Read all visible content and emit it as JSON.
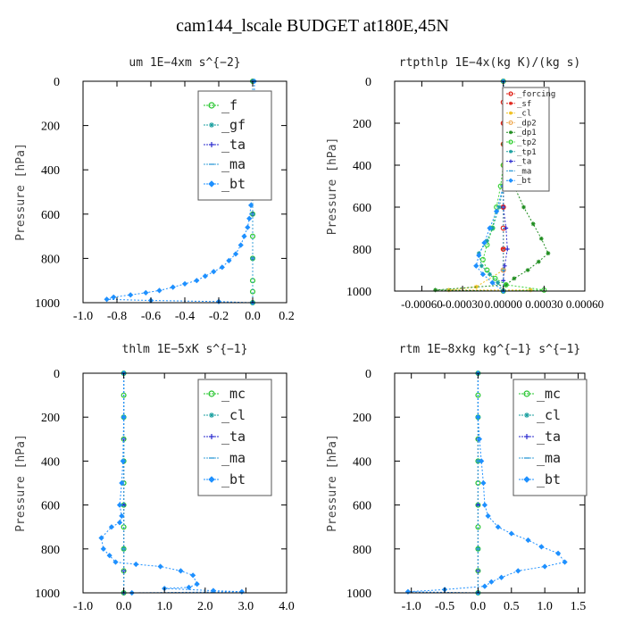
{
  "title": "cam144_lscale  BUDGET at180E,45N",
  "chart_data": [
    {
      "type": "line",
      "title": "um  1E−4xm s^{−2}",
      "ylabel": "Pressure [hPa]",
      "xlim": [
        -1.0,
        0.2
      ],
      "ylim": [
        1000,
        0
      ],
      "xticks": [
        -1.0,
        -0.8,
        -0.6,
        -0.4,
        -0.2,
        0.0,
        0.2
      ],
      "xtick_labels": [
        "-1.0",
        "-0.8",
        "-0.6",
        "-0.4",
        "-0.2",
        "0.0",
        "0.2"
      ],
      "yticks": [
        0,
        200,
        400,
        600,
        800,
        1000
      ],
      "legend": "top-right",
      "series": [
        {
          "name": "_f",
          "color": "#22c42a",
          "marker": "circle",
          "x": [
            0.0,
            0.0,
            0.0,
            0.0,
            0.0,
            0.0,
            0.0,
            0.0,
            0.0,
            0.0,
            0.0,
            0.0
          ],
          "y": [
            0,
            100,
            200,
            300,
            400,
            500,
            600,
            700,
            800,
            900,
            950,
            1000
          ]
        },
        {
          "name": "_gf",
          "color": "#1a9f9f",
          "marker": "star",
          "x": [
            0.0,
            0.0,
            0.0,
            0.0,
            0.0,
            0.0
          ],
          "y": [
            0,
            200,
            400,
            600,
            800,
            1000
          ]
        },
        {
          "name": "_ta",
          "color": "#2a2acf",
          "marker": "plus",
          "x": [
            0.0,
            0.0,
            0.0,
            0.0,
            0.0,
            0.0
          ],
          "y": [
            0,
            200,
            400,
            600,
            800,
            1000
          ]
        },
        {
          "name": "_ma",
          "color": "#3aa0d8",
          "marker": "dash",
          "x": [
            0.0,
            0.0,
            0.0,
            0.0,
            0.0,
            0.0
          ],
          "y": [
            0,
            200,
            400,
            600,
            800,
            1000
          ]
        },
        {
          "name": "_bt",
          "color": "#1e90ff",
          "marker": "diamond",
          "x": [
            0.01,
            0.01,
            0.02,
            0.02,
            0.01,
            0.0,
            -0.01,
            -0.02,
            -0.03,
            -0.05,
            -0.07,
            -0.1,
            -0.14,
            -0.18,
            -0.23,
            -0.28,
            -0.33,
            -0.4,
            -0.47,
            -0.55,
            -0.63,
            -0.72,
            -0.82,
            -0.86,
            -0.6,
            -0.2,
            0.0
          ],
          "y": [
            0,
            100,
            200,
            300,
            400,
            500,
            560,
            620,
            660,
            700,
            740,
            780,
            810,
            840,
            860,
            880,
            900,
            915,
            930,
            945,
            955,
            965,
            975,
            985,
            990,
            995,
            1000
          ]
        }
      ]
    },
    {
      "type": "line",
      "title": "rtpthlp  1E−4x(kg K)/(kg s)",
      "ylabel": "Pressure [hPa]",
      "xlim": [
        -0.0008,
        0.0006
      ],
      "ylim": [
        1000,
        0
      ],
      "xticks": [
        -0.0006,
        -0.0003,
        0.0,
        0.0003,
        0.0006
      ],
      "xtick_labels": [
        "-0.00060",
        "-0.00030",
        "0.00000",
        "0.00030",
        "0.00060"
      ],
      "yticks": [
        0,
        200,
        400,
        600,
        800,
        1000
      ],
      "legend": "top-right",
      "series": [
        {
          "name": "_forcing",
          "color": "#e0241a",
          "marker": "circle",
          "x": [
            0,
            0,
            0,
            0,
            0,
            0,
            0,
            0,
            0,
            0,
            0
          ],
          "y": [
            0,
            100,
            200,
            300,
            400,
            500,
            600,
            700,
            800,
            900,
            1000
          ]
        },
        {
          "name": "_sf",
          "color": "#e0241a",
          "marker": "star",
          "x": [
            0,
            0,
            0,
            0,
            0,
            0
          ],
          "y": [
            0,
            200,
            400,
            600,
            800,
            1000
          ]
        },
        {
          "name": "_cl",
          "color": "#f0c020",
          "marker": "star",
          "x": [
            0,
            0,
            0,
            -0.0002,
            -0.0004,
            0.0002,
            0
          ],
          "y": [
            0,
            400,
            900,
            980,
            995,
            995,
            1000
          ]
        },
        {
          "name": "_dp2",
          "color": "#f0b060",
          "marker": "circle",
          "x": [
            0,
            0,
            0,
            0
          ],
          "y": [
            0,
            500,
            900,
            1000
          ]
        },
        {
          "name": "_dp1",
          "color": "#1e8c1e",
          "marker": "star",
          "x": [
            0.0,
            0.0,
            3e-05,
            8e-05,
            0.00015,
            0.00022,
            0.00028,
            0.00033,
            0.00026,
            0.00018,
            8e-05,
            2e-05,
            -0.0005,
            0.0
          ],
          "y": [
            0,
            300,
            400,
            500,
            600,
            680,
            750,
            820,
            860,
            900,
            940,
            970,
            995,
            1000
          ]
        },
        {
          "name": "_tp2",
          "color": "#3ad23a",
          "marker": "circle",
          "x": [
            0.0,
            0.0,
            -2e-05,
            -5e-05,
            -8e-05,
            -0.00012,
            -0.00015,
            -0.00012,
            -6e-05,
            2e-05,
            0.0003,
            0.0
          ],
          "y": [
            0,
            400,
            500,
            600,
            700,
            780,
            850,
            900,
            940,
            970,
            995,
            1000
          ]
        },
        {
          "name": "_tp1",
          "color": "#1a9f9f",
          "marker": "star",
          "x": [
            0.0,
            0.0,
            -3e-05,
            -8e-05,
            -0.00012,
            -0.00018,
            -0.00016,
            -0.0001,
            -4e-05,
            0.0
          ],
          "y": [
            0,
            500,
            600,
            700,
            760,
            820,
            880,
            920,
            960,
            1000
          ]
        },
        {
          "name": "_ta",
          "color": "#2a2acf",
          "marker": "plus",
          "x": [
            0,
            0,
            2e-05,
            3e-05,
            1e-05,
            0,
            0
          ],
          "y": [
            0,
            600,
            700,
            800,
            880,
            950,
            1000
          ]
        },
        {
          "name": "_ma",
          "color": "#3aa0d8",
          "marker": "dash",
          "x": [
            0,
            0,
            0,
            0
          ],
          "y": [
            0,
            500,
            900,
            1000
          ]
        },
        {
          "name": "_bt",
          "color": "#1e90ff",
          "marker": "diamond",
          "x": [
            0.0,
            0.0,
            -5e-05,
            -0.0001,
            -0.00014,
            -0.00018,
            -0.0002,
            -0.00015,
            -8e-05,
            0.0
          ],
          "y": [
            0,
            500,
            620,
            700,
            770,
            830,
            880,
            920,
            960,
            1000
          ]
        }
      ]
    },
    {
      "type": "line",
      "title": "thlm  1E−5xK s^{−1}",
      "ylabel": "Pressure [hPa]",
      "xlim": [
        -1.0,
        4.0
      ],
      "ylim": [
        1000,
        0
      ],
      "xticks": [
        -1.0,
        0.0,
        1.0,
        2.0,
        3.0,
        4.0
      ],
      "xtick_labels": [
        "-1.0",
        "0.0",
        "1.0",
        "2.0",
        "3.0",
        "4.0"
      ],
      "yticks": [
        0,
        200,
        400,
        600,
        800,
        1000
      ],
      "legend": "top-right",
      "series": [
        {
          "name": "_mc",
          "color": "#22c42a",
          "marker": "circle",
          "x": [
            0,
            0,
            0,
            0,
            0,
            0,
            0,
            0,
            0,
            0,
            0
          ],
          "y": [
            0,
            100,
            200,
            300,
            400,
            500,
            600,
            700,
            800,
            900,
            1000
          ]
        },
        {
          "name": "_cl",
          "color": "#1a9f9f",
          "marker": "star",
          "x": [
            0,
            0,
            0,
            0,
            0,
            0
          ],
          "y": [
            0,
            200,
            400,
            600,
            800,
            1000
          ]
        },
        {
          "name": "_ta",
          "color": "#2a2acf",
          "marker": "plus",
          "x": [
            0,
            0,
            0,
            0,
            0
          ],
          "y": [
            0,
            300,
            600,
            900,
            1000
          ]
        },
        {
          "name": "_ma",
          "color": "#3aa0d8",
          "marker": "dash",
          "x": [
            0,
            0,
            0,
            0
          ],
          "y": [
            0,
            400,
            800,
            1000
          ]
        },
        {
          "name": "_bt",
          "color": "#1e90ff",
          "marker": "diamond",
          "x": [
            0.0,
            0.0,
            -0.02,
            -0.05,
            -0.1,
            -0.05,
            -0.1,
            -0.3,
            -0.55,
            -0.5,
            -0.35,
            -0.2,
            0.3,
            0.9,
            1.4,
            1.7,
            1.8,
            1.6,
            1.0,
            2.2,
            2.9,
            0.2
          ],
          "y": [
            0,
            200,
            400,
            500,
            600,
            650,
            680,
            700,
            750,
            800,
            830,
            860,
            870,
            880,
            900,
            920,
            960,
            975,
            980,
            990,
            995,
            1000
          ]
        }
      ]
    },
    {
      "type": "line",
      "title": "rtm  1E−8xkg kg^{−1} s^{−1}",
      "ylabel": "Pressure [hPa]",
      "xlim": [
        -1.25,
        1.6
      ],
      "ylim": [
        1000,
        0
      ],
      "xticks": [
        -1.0,
        -0.5,
        0.0,
        0.5,
        1.0,
        1.5
      ],
      "xtick_labels": [
        "-1.0",
        "-0.5",
        "0.0",
        "0.5",
        "1.0",
        "1.5"
      ],
      "yticks": [
        0,
        200,
        400,
        600,
        800,
        1000
      ],
      "legend": "top-right",
      "series": [
        {
          "name": "_mc",
          "color": "#22c42a",
          "marker": "circle",
          "x": [
            0,
            0,
            0,
            0,
            0,
            0,
            0,
            0,
            0,
            0,
            0
          ],
          "y": [
            0,
            100,
            200,
            300,
            400,
            500,
            600,
            700,
            800,
            900,
            1000
          ]
        },
        {
          "name": "_cl",
          "color": "#1a9f9f",
          "marker": "star",
          "x": [
            0,
            0,
            0,
            0,
            0,
            0
          ],
          "y": [
            0,
            200,
            400,
            600,
            800,
            1000
          ]
        },
        {
          "name": "_ta",
          "color": "#2a2acf",
          "marker": "plus",
          "x": [
            0,
            0,
            0,
            0,
            0
          ],
          "y": [
            0,
            300,
            600,
            900,
            1000
          ]
        },
        {
          "name": "_ma",
          "color": "#3aa0d8",
          "marker": "dash",
          "x": [
            0,
            0,
            0,
            0
          ],
          "y": [
            0,
            400,
            800,
            1000
          ]
        },
        {
          "name": "_bt",
          "color": "#1e90ff",
          "marker": "diamond",
          "x": [
            0.0,
            0.0,
            0.02,
            0.05,
            0.08,
            0.1,
            0.15,
            0.3,
            0.5,
            0.75,
            0.95,
            1.2,
            1.3,
            1.0,
            0.6,
            0.35,
            0.2,
            0.1,
            -0.5,
            -1.05,
            0.0
          ],
          "y": [
            0,
            200,
            300,
            400,
            500,
            600,
            650,
            700,
            730,
            760,
            790,
            820,
            860,
            880,
            900,
            930,
            950,
            970,
            985,
            995,
            1000
          ]
        }
      ]
    }
  ]
}
